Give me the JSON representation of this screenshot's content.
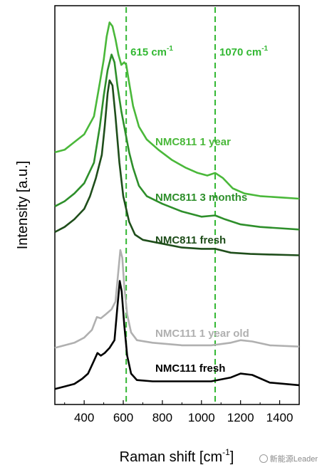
{
  "chart_data": {
    "type": "line",
    "xlabel": "Raman shift [cm",
    "xlabel_superscript": "-1",
    "xlabel_close": "]",
    "ylabel": "Intensity [a.u.]",
    "xlim": [
      250,
      1500
    ],
    "xticks": [
      400,
      600,
      800,
      1000,
      1200,
      1400
    ],
    "yaxis_ticks": false,
    "reference_lines": [
      {
        "x": 615,
        "label": "615 cm",
        "sup": "-1",
        "color": "#33b833",
        "style": "dashed"
      },
      {
        "x": 1070,
        "label": "1070 cm",
        "sup": "-1",
        "color": "#33b833",
        "style": "dashed"
      }
    ],
    "series": [
      {
        "name": "NMC811 1 year",
        "color": "#4ab83a",
        "points": [
          [
            250,
            0.48
          ],
          [
            300,
            0.49
          ],
          [
            350,
            0.52
          ],
          [
            400,
            0.55
          ],
          [
            450,
            0.62
          ],
          [
            480,
            0.75
          ],
          [
            500,
            0.84
          ],
          [
            515,
            0.93
          ],
          [
            530,
            0.985
          ],
          [
            545,
            0.97
          ],
          [
            560,
            0.92
          ],
          [
            575,
            0.86
          ],
          [
            590,
            0.82
          ],
          [
            605,
            0.83
          ],
          [
            615,
            0.82
          ],
          [
            630,
            0.75
          ],
          [
            650,
            0.66
          ],
          [
            680,
            0.58
          ],
          [
            720,
            0.53
          ],
          [
            780,
            0.49
          ],
          [
            850,
            0.45
          ],
          [
            920,
            0.42
          ],
          [
            980,
            0.4
          ],
          [
            1030,
            0.39
          ],
          [
            1070,
            0.4
          ],
          [
            1110,
            0.38
          ],
          [
            1160,
            0.34
          ],
          [
            1220,
            0.32
          ],
          [
            1300,
            0.31
          ],
          [
            1400,
            0.305
          ],
          [
            1500,
            0.3
          ]
        ]
      },
      {
        "name": "NMC811 3 months",
        "color": "#2e8f2b",
        "points": [
          [
            250,
            0.27
          ],
          [
            300,
            0.29
          ],
          [
            350,
            0.32
          ],
          [
            400,
            0.36
          ],
          [
            450,
            0.44
          ],
          [
            480,
            0.58
          ],
          [
            500,
            0.7
          ],
          [
            520,
            0.8
          ],
          [
            540,
            0.86
          ],
          [
            555,
            0.83
          ],
          [
            570,
            0.74
          ],
          [
            590,
            0.64
          ],
          [
            610,
            0.56
          ],
          [
            630,
            0.48
          ],
          [
            650,
            0.42
          ],
          [
            680,
            0.35
          ],
          [
            720,
            0.31
          ],
          [
            800,
            0.28
          ],
          [
            900,
            0.25
          ],
          [
            1000,
            0.23
          ],
          [
            1070,
            0.235
          ],
          [
            1120,
            0.22
          ],
          [
            1200,
            0.2
          ],
          [
            1300,
            0.19
          ],
          [
            1400,
            0.185
          ],
          [
            1500,
            0.18
          ]
        ]
      },
      {
        "name": "NMC811 fresh",
        "color": "#1f4e1b",
        "points": [
          [
            250,
            0.17
          ],
          [
            300,
            0.19
          ],
          [
            350,
            0.22
          ],
          [
            400,
            0.26
          ],
          [
            430,
            0.31
          ],
          [
            460,
            0.38
          ],
          [
            490,
            0.47
          ],
          [
            505,
            0.58
          ],
          [
            520,
            0.71
          ],
          [
            530,
            0.76
          ],
          [
            545,
            0.74
          ],
          [
            560,
            0.62
          ],
          [
            580,
            0.44
          ],
          [
            600,
            0.31
          ],
          [
            630,
            0.21
          ],
          [
            660,
            0.16
          ],
          [
            700,
            0.14
          ],
          [
            800,
            0.125
          ],
          [
            900,
            0.11
          ],
          [
            1000,
            0.105
          ],
          [
            1070,
            0.105
          ],
          [
            1150,
            0.09
          ],
          [
            1250,
            0.085
          ],
          [
            1350,
            0.083
          ],
          [
            1500,
            0.08
          ]
        ]
      },
      {
        "name": "NMC111 1 year old",
        "color": "#b0b0b0",
        "points": [
          [
            250,
            -0.28
          ],
          [
            300,
            -0.27
          ],
          [
            350,
            -0.26
          ],
          [
            400,
            -0.24
          ],
          [
            440,
            -0.21
          ],
          [
            465,
            -0.16
          ],
          [
            485,
            -0.165
          ],
          [
            510,
            -0.15
          ],
          [
            540,
            -0.13
          ],
          [
            560,
            -0.1
          ],
          [
            575,
            0.02
          ],
          [
            585,
            0.1
          ],
          [
            595,
            0.07
          ],
          [
            605,
            -0.04
          ],
          [
            620,
            -0.15
          ],
          [
            640,
            -0.22
          ],
          [
            670,
            -0.25
          ],
          [
            750,
            -0.26
          ],
          [
            900,
            -0.27
          ],
          [
            1050,
            -0.27
          ],
          [
            1150,
            -0.26
          ],
          [
            1200,
            -0.25
          ],
          [
            1260,
            -0.255
          ],
          [
            1350,
            -0.27
          ],
          [
            1500,
            -0.275
          ]
        ]
      },
      {
        "name": "NMC111 fresh",
        "color": "#000000",
        "points": [
          [
            250,
            -0.44
          ],
          [
            300,
            -0.43
          ],
          [
            350,
            -0.42
          ],
          [
            390,
            -0.4
          ],
          [
            420,
            -0.38
          ],
          [
            450,
            -0.33
          ],
          [
            468,
            -0.3
          ],
          [
            485,
            -0.31
          ],
          [
            505,
            -0.3
          ],
          [
            530,
            -0.28
          ],
          [
            555,
            -0.25
          ],
          [
            570,
            -0.12
          ],
          [
            582,
            -0.02
          ],
          [
            592,
            -0.06
          ],
          [
            605,
            -0.19
          ],
          [
            620,
            -0.31
          ],
          [
            640,
            -0.38
          ],
          [
            670,
            -0.405
          ],
          [
            750,
            -0.41
          ],
          [
            900,
            -0.41
          ],
          [
            1050,
            -0.41
          ],
          [
            1150,
            -0.395
          ],
          [
            1200,
            -0.38
          ],
          [
            1260,
            -0.385
          ],
          [
            1350,
            -0.415
          ],
          [
            1500,
            -0.425
          ]
        ]
      }
    ]
  },
  "watermark": {
    "text": "新能源Leader",
    "icon": "wechat-icon"
  }
}
